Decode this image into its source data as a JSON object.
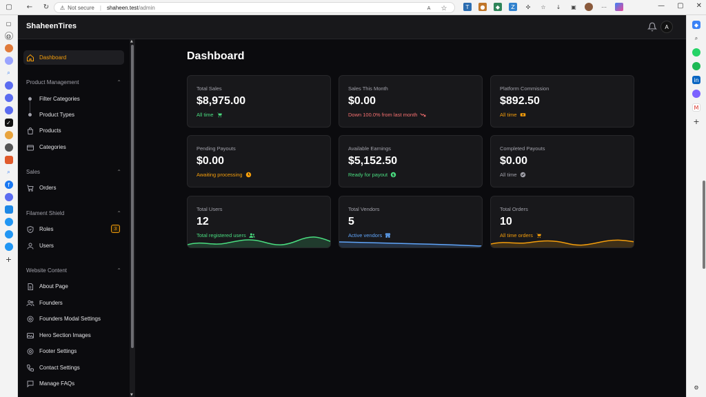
{
  "browser": {
    "security_label": "Not secure",
    "url_host": "shaheen.test",
    "url_path": "/admin"
  },
  "app": {
    "brand": "ShaheenTires",
    "avatar_initial": "A",
    "accent": "#f59e0b"
  },
  "sidebar": {
    "dashboard": "Dashboard",
    "groups": {
      "product_management": "Product Management",
      "sales": "Sales",
      "filament_shield": "Filament Shield",
      "website_content": "Website Content"
    },
    "items": {
      "filter_categories": "Filter Categories",
      "product_types": "Product Types",
      "products": "Products",
      "categories": "Categories",
      "orders": "Orders",
      "roles": "Roles",
      "roles_badge": "3",
      "users": "Users",
      "about_page": "About Page",
      "founders": "Founders",
      "founders_modal_settings": "Founders Modal Settings",
      "hero_section_images": "Hero Section Images",
      "footer_settings": "Footer Settings",
      "contact_settings": "Contact Settings",
      "manage_faqs": "Manage FAQs"
    }
  },
  "main": {
    "title": "Dashboard",
    "cards": {
      "total_sales": {
        "label": "Total Sales",
        "value": "$8,975.00",
        "desc": "All time"
      },
      "sales_month": {
        "label": "Sales This Month",
        "value": "$0.00",
        "desc": "Down 100.0% from last month"
      },
      "commission": {
        "label": "Platform Commission",
        "value": "$892.50",
        "desc": "All time"
      },
      "pending_payouts": {
        "label": "Pending Payouts",
        "value": "$0.00",
        "desc": "Awaiting processing"
      },
      "available": {
        "label": "Available Earnings",
        "value": "$5,152.50",
        "desc": "Ready for payout"
      },
      "completed": {
        "label": "Completed Payouts",
        "value": "$0.00",
        "desc": "All time"
      },
      "users": {
        "label": "Total Users",
        "value": "12",
        "desc": "Total registered users"
      },
      "vendors": {
        "label": "Total Vendors",
        "value": "5",
        "desc": "Active vendors"
      },
      "orders": {
        "label": "Total Orders",
        "value": "10",
        "desc": "All time orders"
      }
    }
  }
}
